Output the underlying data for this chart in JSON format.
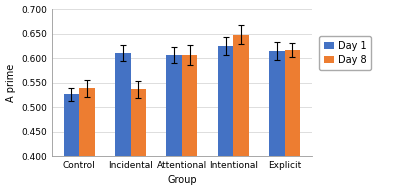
{
  "categories": [
    "Control",
    "Incidental",
    "Attentional",
    "Intentional",
    "Explicit"
  ],
  "day1_values": [
    0.526,
    0.61,
    0.606,
    0.624,
    0.615
  ],
  "day8_values": [
    0.538,
    0.536,
    0.606,
    0.648,
    0.616
  ],
  "day1_errors": [
    0.013,
    0.016,
    0.016,
    0.018,
    0.018
  ],
  "day8_errors": [
    0.018,
    0.018,
    0.02,
    0.02,
    0.014
  ],
  "day1_color": "#4472C4",
  "day8_color": "#ED7D31",
  "ylabel": "A prime",
  "xlabel": "Group",
  "ylim_min": 0.4,
  "ylim_max": 0.7,
  "yticks": [
    0.4,
    0.45,
    0.5,
    0.55,
    0.6,
    0.65,
    0.7
  ],
  "legend_labels": [
    "Day 1",
    "Day 8"
  ],
  "bar_width": 0.3,
  "axis_fontsize": 7,
  "tick_fontsize": 6.5,
  "legend_fontsize": 7
}
